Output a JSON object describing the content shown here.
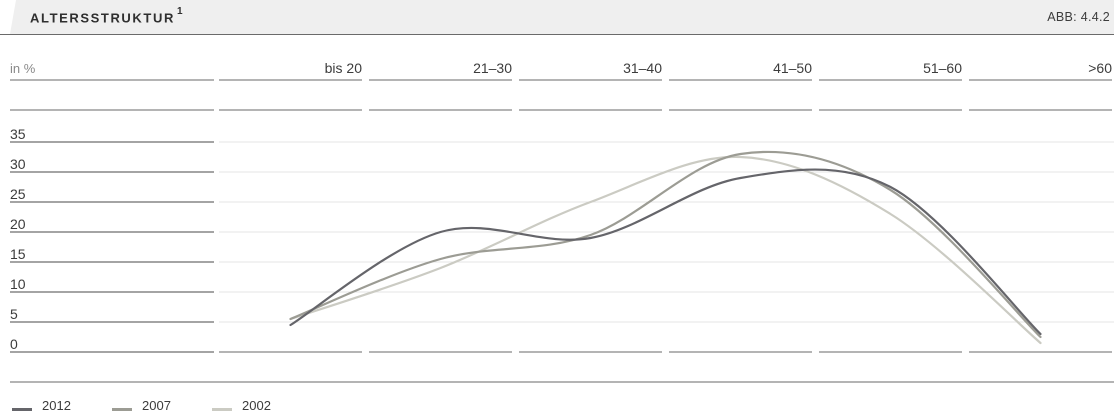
{
  "header": {
    "title": "ALTERSSTRUKTUR",
    "footnote_marker": "1",
    "figure_number": "ABB: 4.4.2"
  },
  "chart_data": {
    "type": "line",
    "unit_label": "in %",
    "categories": [
      "bis 20",
      "21–30",
      "31–40",
      "41–50",
      "51–60",
      ">60"
    ],
    "y_ticks": [
      0,
      5,
      10,
      15,
      20,
      25,
      30,
      35
    ],
    "ylim": [
      0,
      35
    ],
    "grid": true,
    "legend_position": "bottom-left",
    "series": [
      {
        "name": "2012",
        "values": [
          4.5,
          20,
          19,
          29,
          27.5,
          3
        ],
        "color": "#65656a"
      },
      {
        "name": "2007",
        "values": [
          5.5,
          15.5,
          19.5,
          33,
          27,
          2.5
        ],
        "color": "#9c9c94"
      },
      {
        "name": "2002",
        "values": [
          5.5,
          14,
          25,
          32.5,
          23,
          1.5
        ],
        "color": "#cbcbc3"
      }
    ]
  }
}
